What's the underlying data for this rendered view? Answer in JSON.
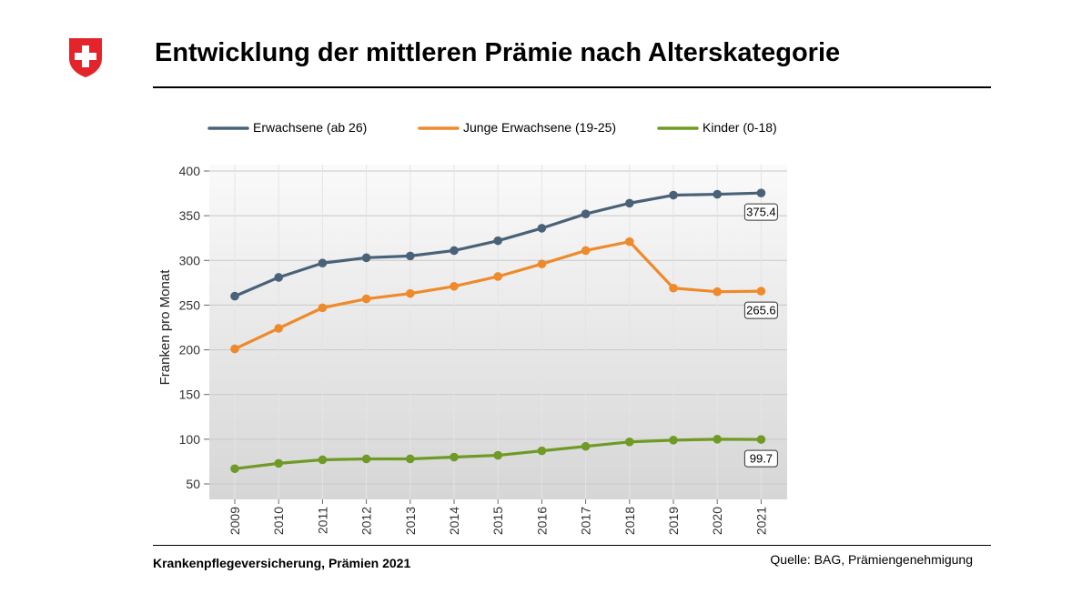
{
  "header": {
    "title": "Entwicklung der mittleren Prämie nach Alterskategorie",
    "logo": "swiss-cross-logo"
  },
  "footer": {
    "left": "Krankenpflegeversicherung, Prämien 2021",
    "right": "Quelle: BAG, Prämiengenehmigung"
  },
  "colors": {
    "erwachsene": "#4a6278",
    "junge": "#ee8a2c",
    "kinder": "#6f9a26",
    "logo_red": "#e3242b"
  },
  "chart_data": {
    "type": "line",
    "title": "",
    "xlabel": "",
    "ylabel": "Franken pro Monat",
    "ylim": [
      35,
      400
    ],
    "yticks": [
      50,
      100,
      150,
      200,
      250,
      300,
      350,
      400
    ],
    "x": [
      "2009",
      "2010",
      "2011",
      "2012",
      "2013",
      "2014",
      "2015",
      "2016",
      "2017",
      "2018",
      "2019",
      "2020",
      "2021"
    ],
    "legend_position": "top",
    "grid": true,
    "series": [
      {
        "name": "Erwachsene (ab 26)",
        "color": "#4a6278",
        "values": [
          260,
          281,
          297,
          303,
          305,
          311,
          322,
          336,
          352,
          364,
          373,
          374,
          375.4
        ],
        "end_label": "375.4"
      },
      {
        "name": "Junge Erwachsene (19-25)",
        "color": "#ee8a2c",
        "values": [
          201,
          224,
          247,
          257,
          263,
          271,
          282,
          296,
          311,
          321,
          269,
          265,
          265.6
        ],
        "end_label": "265.6"
      },
      {
        "name": "Kinder (0-18)",
        "color": "#6f9a26",
        "values": [
          67,
          73,
          77,
          78,
          78,
          80,
          82,
          87,
          92,
          97,
          99,
          100,
          99.7
        ],
        "end_label": "99.7"
      }
    ]
  }
}
